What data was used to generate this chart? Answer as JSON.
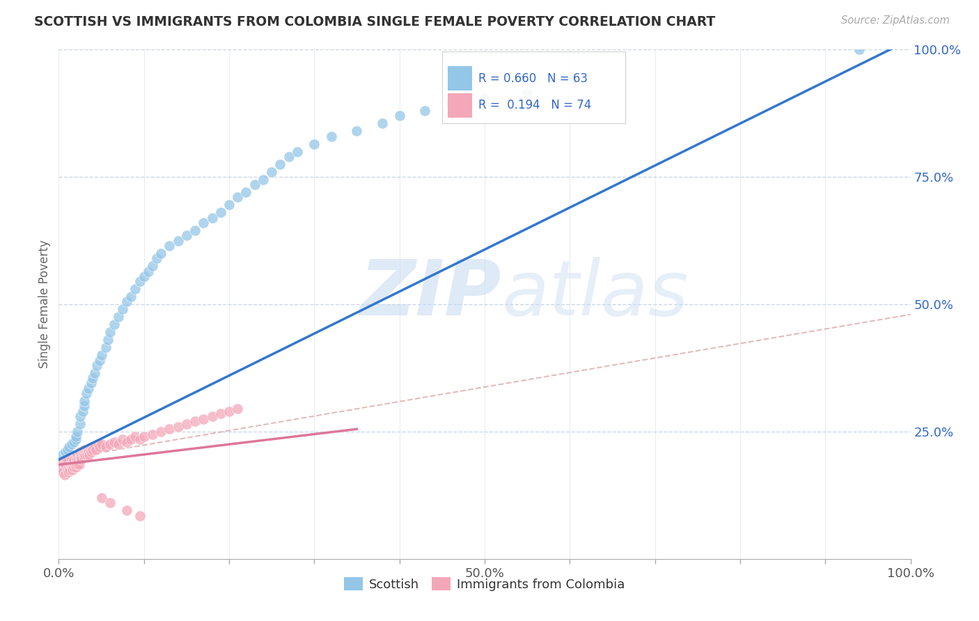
{
  "title": "SCOTTISH VS IMMIGRANTS FROM COLOMBIA SINGLE FEMALE POVERTY CORRELATION CHART",
  "source": "Source: ZipAtlas.com",
  "ylabel": "Single Female Poverty",
  "xlim": [
    0,
    1
  ],
  "ylim": [
    0,
    1
  ],
  "xticks": [
    0,
    0.1,
    0.2,
    0.3,
    0.4,
    0.5,
    0.6,
    0.7,
    0.8,
    0.9,
    1.0
  ],
  "xtick_major": [
    0,
    0.5,
    1.0
  ],
  "xtick_major_labels": [
    "0.0%",
    "50.0%",
    "100.0%"
  ],
  "ytick_major": [
    0.25,
    0.5,
    0.75,
    1.0
  ],
  "ytick_major_labels": [
    "25.0%",
    "50.0%",
    "75.0%",
    "100.0%"
  ],
  "scottish_color": "#94C6E8",
  "colombia_color": "#F4A7B9",
  "scottish_R": 0.66,
  "scottish_N": 63,
  "colombia_R": 0.194,
  "colombia_N": 74,
  "trend_blue": "#3377CC",
  "trend_pink": "#DD7799",
  "dash_pink": "#DDAAAA",
  "legend_text_color": "#3366CC",
  "watermark_color": "#C8DCF0",
  "background_color": "#FFFFFF",
  "grid_color": "#C8D8E8",
  "scottish_x": [
    0.005,
    0.008,
    0.01,
    0.012,
    0.015,
    0.018,
    0.02,
    0.02,
    0.022,
    0.025,
    0.025,
    0.028,
    0.03,
    0.03,
    0.032,
    0.035,
    0.038,
    0.04,
    0.042,
    0.045,
    0.048,
    0.05,
    0.055,
    0.058,
    0.06,
    0.065,
    0.07,
    0.075,
    0.08,
    0.085,
    0.09,
    0.095,
    0.1,
    0.105,
    0.11,
    0.115,
    0.12,
    0.13,
    0.14,
    0.15,
    0.16,
    0.17,
    0.18,
    0.19,
    0.2,
    0.21,
    0.22,
    0.23,
    0.24,
    0.25,
    0.26,
    0.27,
    0.28,
    0.3,
    0.32,
    0.35,
    0.38,
    0.4,
    0.43,
    0.46,
    0.5,
    0.55,
    0.94
  ],
  "scottish_y": [
    0.205,
    0.21,
    0.215,
    0.22,
    0.225,
    0.23,
    0.235,
    0.24,
    0.25,
    0.265,
    0.28,
    0.29,
    0.3,
    0.31,
    0.325,
    0.335,
    0.345,
    0.355,
    0.365,
    0.38,
    0.39,
    0.4,
    0.415,
    0.43,
    0.445,
    0.46,
    0.475,
    0.49,
    0.505,
    0.515,
    0.53,
    0.545,
    0.555,
    0.565,
    0.575,
    0.59,
    0.6,
    0.615,
    0.625,
    0.635,
    0.645,
    0.66,
    0.67,
    0.68,
    0.695,
    0.71,
    0.72,
    0.735,
    0.745,
    0.76,
    0.775,
    0.79,
    0.8,
    0.815,
    0.83,
    0.84,
    0.855,
    0.87,
    0.88,
    0.895,
    0.905,
    0.915,
    1.0
  ],
  "colombia_x": [
    0.003,
    0.005,
    0.005,
    0.007,
    0.008,
    0.01,
    0.01,
    0.011,
    0.012,
    0.013,
    0.014,
    0.015,
    0.015,
    0.016,
    0.016,
    0.017,
    0.018,
    0.018,
    0.019,
    0.02,
    0.02,
    0.021,
    0.022,
    0.022,
    0.023,
    0.024,
    0.025,
    0.025,
    0.026,
    0.027,
    0.028,
    0.029,
    0.03,
    0.03,
    0.031,
    0.032,
    0.033,
    0.034,
    0.035,
    0.036,
    0.037,
    0.038,
    0.039,
    0.04,
    0.042,
    0.044,
    0.046,
    0.048,
    0.05,
    0.055,
    0.06,
    0.065,
    0.07,
    0.075,
    0.08,
    0.085,
    0.09,
    0.095,
    0.1,
    0.11,
    0.12,
    0.13,
    0.14,
    0.15,
    0.16,
    0.17,
    0.18,
    0.19,
    0.2,
    0.21,
    0.05,
    0.06,
    0.08,
    0.095
  ],
  "colombia_y": [
    0.18,
    0.17,
    0.19,
    0.165,
    0.185,
    0.175,
    0.195,
    0.17,
    0.18,
    0.175,
    0.185,
    0.18,
    0.195,
    0.185,
    0.175,
    0.19,
    0.18,
    0.195,
    0.185,
    0.18,
    0.2,
    0.195,
    0.185,
    0.205,
    0.195,
    0.185,
    0.2,
    0.21,
    0.2,
    0.195,
    0.21,
    0.205,
    0.2,
    0.215,
    0.205,
    0.21,
    0.205,
    0.215,
    0.21,
    0.205,
    0.215,
    0.21,
    0.22,
    0.215,
    0.22,
    0.215,
    0.225,
    0.22,
    0.225,
    0.22,
    0.225,
    0.23,
    0.225,
    0.235,
    0.23,
    0.235,
    0.24,
    0.235,
    0.24,
    0.245,
    0.25,
    0.255,
    0.26,
    0.265,
    0.27,
    0.275,
    0.28,
    0.285,
    0.29,
    0.295,
    0.12,
    0.11,
    0.095,
    0.085
  ],
  "blue_line_x": [
    0.0,
    1.0
  ],
  "blue_line_y": [
    0.195,
    1.02
  ],
  "pink_line_x": [
    0.0,
    0.35
  ],
  "pink_line_y": [
    0.185,
    0.255
  ],
  "dash_line_x": [
    0.0,
    1.0
  ],
  "dash_line_y": [
    0.195,
    0.48
  ]
}
